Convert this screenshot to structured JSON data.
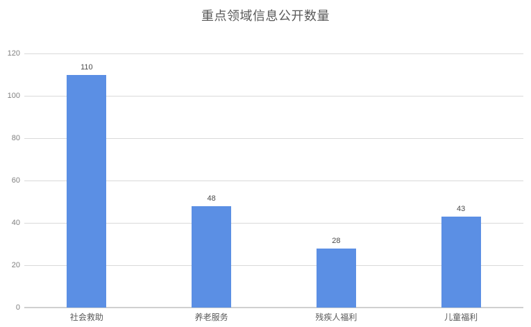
{
  "chart_data": {
    "type": "bar",
    "title": "重点领域信息公开数量",
    "categories": [
      "社会救助",
      "养老服务",
      "残疾人福利",
      "儿童福利"
    ],
    "values": [
      110,
      48,
      28,
      43
    ],
    "xlabel": "",
    "ylabel": "",
    "ylim": [
      0,
      120
    ],
    "yticks": [
      0,
      20,
      40,
      60,
      80,
      100,
      120
    ],
    "grid": true,
    "legend_position": "none",
    "value_labels_shown": true
  },
  "colors": {
    "bar": "#5B8FE4",
    "gridline": "#D9D9D9",
    "axis_line": "#D0D0D0",
    "title_text": "#595959",
    "ytick_text": "#808080",
    "value_label_text": "#4A4A4A",
    "category_text": "#595959",
    "background": "#FFFFFF"
  }
}
